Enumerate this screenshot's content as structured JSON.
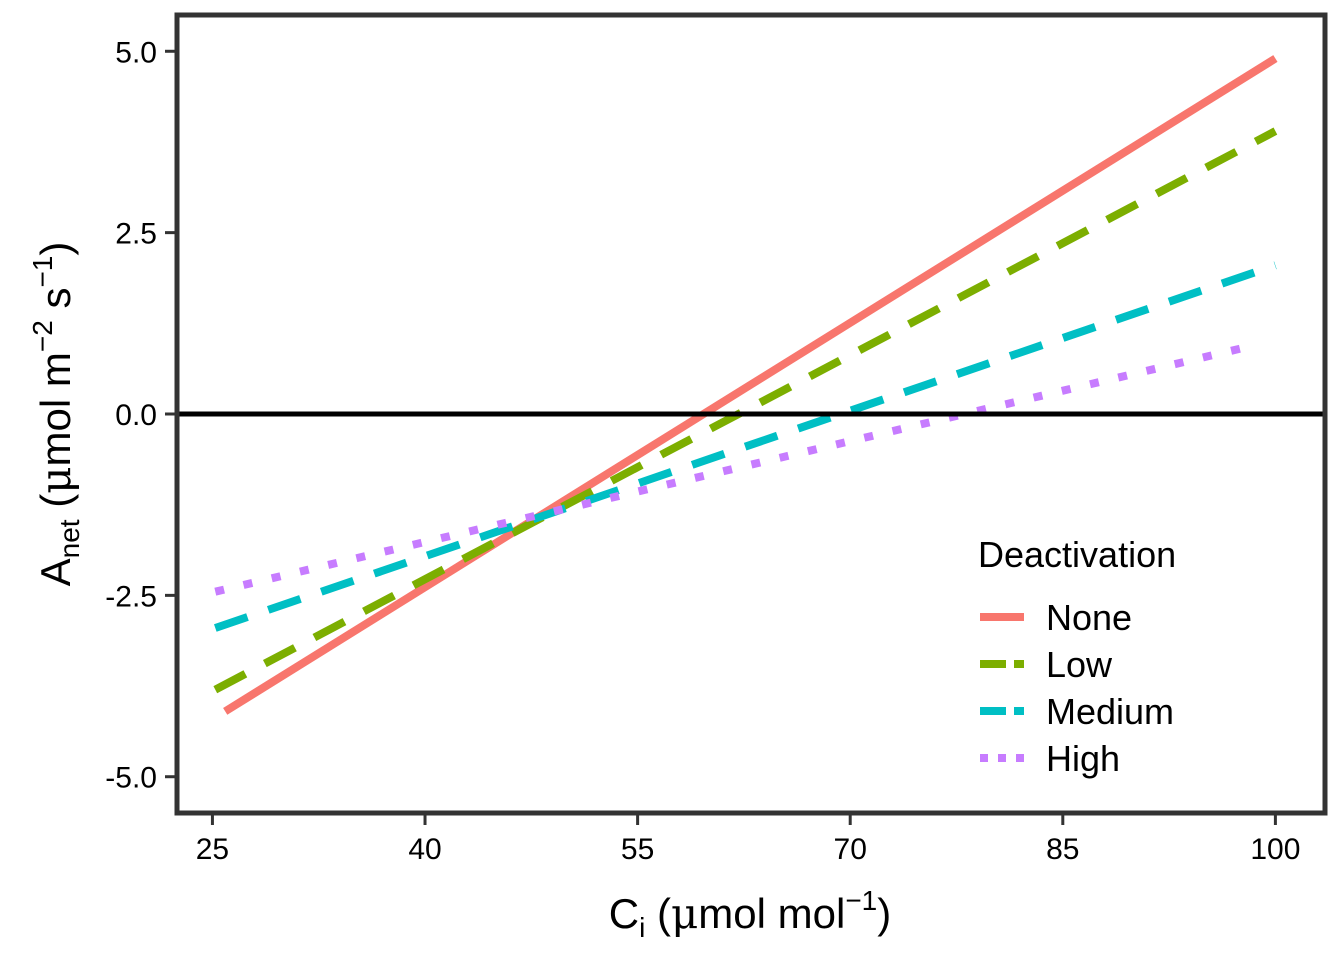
{
  "chart_data": {
    "type": "line",
    "xlabel": {
      "main": "C",
      "sub": "i",
      "unit_pre": " (",
      "mu": "μ",
      "unit_mid": "mol mol",
      "sup": "−1",
      "close": ")"
    },
    "ylabel": {
      "main": "A",
      "sub": "net",
      "unit_pre": " (",
      "mu": "μ",
      "unit_mid": "mol m",
      "sup1": "−2",
      "unit_mid2": " s",
      "sup2": "−1",
      "close": ")"
    },
    "xlim": [
      22.5,
      103.5
    ],
    "ylim": [
      -5.5,
      5.5
    ],
    "x_ticks": [
      25,
      40,
      55,
      70,
      85,
      100
    ],
    "x_tick_labels": [
      "25",
      "40",
      "55",
      "70",
      "85",
      "100"
    ],
    "y_ticks": [
      -5,
      -2.5,
      0,
      2.5,
      5
    ],
    "y_tick_labels": [
      "-5.0",
      "-2.5",
      "0.0",
      "2.5",
      "5.0"
    ],
    "hline": 0,
    "grid": false,
    "legend": {
      "title": "Deactivation",
      "position": "bottom-right"
    },
    "series": [
      {
        "name": "None",
        "color": "#F8766D",
        "dash": "solid",
        "x": [
          25.9,
          100
        ],
        "y": [
          -4.1,
          4.9
        ]
      },
      {
        "name": "Low",
        "color": "#7CAE00",
        "dash": "dashed",
        "x": [
          25.2,
          100
        ],
        "y": [
          -3.8,
          3.9
        ]
      },
      {
        "name": "Medium",
        "color": "#00BFC4",
        "dash": "dashed",
        "x": [
          25.2,
          100
        ],
        "y": [
          -2.95,
          2.05
        ]
      },
      {
        "name": "High",
        "color": "#C77CFF",
        "dash": "dotted",
        "x": [
          25.2,
          97.5
        ],
        "y": [
          -2.45,
          0.9
        ]
      }
    ]
  }
}
